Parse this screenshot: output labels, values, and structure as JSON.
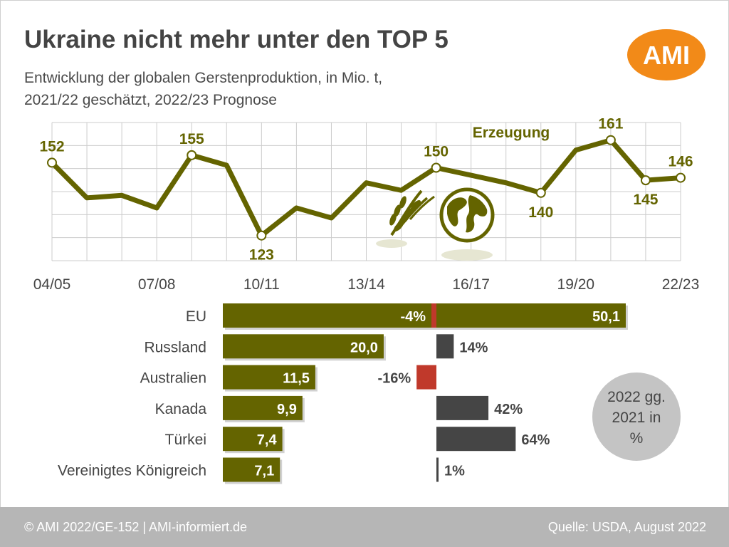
{
  "header": {
    "title": "Ukraine nicht mehr unter den TOP 5",
    "subtitle_line1": "Entwicklung der globalen Gerstenproduktion, in Mio. t,",
    "subtitle_line2": "2021/22 geschätzt, 2022/23 Prognose",
    "logo_text": "AMI"
  },
  "footer": {
    "left": "© AMI 2022/GE-152 | AMI-informiert.de",
    "right": "Quelle: USDA, August 2022"
  },
  "colors": {
    "olive": "#646400",
    "red": "#c0392b",
    "dark_gray": "#454545",
    "orange": "#f28a18",
    "grid": "#cccccc",
    "footer": "#b6b6b6"
  },
  "icons": [
    "wheat-icon",
    "globe-icon"
  ],
  "chart_data": [
    {
      "type": "line",
      "series_label": "Erzeugung",
      "x_ticks": [
        "04/05",
        "07/08",
        "10/11",
        "13/14",
        "16/17",
        "19/20",
        "22/23"
      ],
      "x": [
        "04/05",
        "05/06",
        "06/07",
        "07/08",
        "08/09",
        "09/10",
        "10/11",
        "11/12",
        "12/13",
        "13/14",
        "14/15",
        "15/16",
        "16/17",
        "17/18",
        "18/19",
        "19/20",
        "20/21",
        "21/22",
        "22/23"
      ],
      "values": [
        152,
        138,
        139,
        134,
        155,
        151,
        123,
        134,
        130,
        144,
        141,
        150,
        147,
        144,
        140,
        157,
        161,
        145,
        146
      ],
      "labeled": [
        {
          "x": "04/05",
          "value": "152"
        },
        {
          "x": "08/09",
          "value": "155"
        },
        {
          "x": "10/11",
          "value": "123"
        },
        {
          "x": "15/16",
          "value": "150"
        },
        {
          "x": "18/19",
          "value": "140"
        },
        {
          "x": "20/21",
          "value": "161"
        },
        {
          "x": "21/22",
          "value": "145"
        },
        {
          "x": "22/23",
          "value": "146"
        }
      ],
      "grid": true
    },
    {
      "type": "bar",
      "orientation": "horizontal",
      "categories": [
        "EU",
        "Russland",
        "Australien",
        "Kanada",
        "Türkei",
        "Vereinigtes Königreich"
      ],
      "values": [
        50.1,
        20.0,
        11.5,
        9.9,
        7.4,
        7.1
      ],
      "value_labels": [
        "50,1",
        "20,0",
        "11,5",
        "9,9",
        "7,4",
        "7,1"
      ]
    },
    {
      "type": "bar",
      "orientation": "horizontal",
      "categories": [
        "EU",
        "Russland",
        "Australien",
        "Kanada",
        "Türkei",
        "Vereinigtes Königreich"
      ],
      "values": [
        -4,
        14,
        -16,
        42,
        64,
        1
      ],
      "value_labels": [
        "-4%",
        "14%",
        "-16%",
        "42%",
        "64%",
        "1%"
      ],
      "annotation": "2022 gg. 2021 in %",
      "annotation_lines": [
        "2022 gg.",
        "2021 in",
        "%"
      ]
    }
  ]
}
